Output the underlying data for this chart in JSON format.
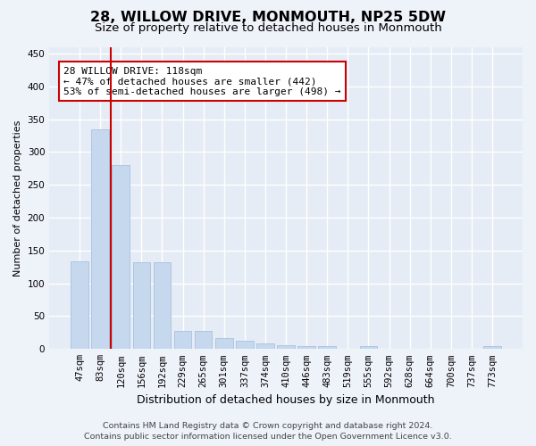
{
  "title1": "28, WILLOW DRIVE, MONMOUTH, NP25 5DW",
  "title2": "Size of property relative to detached houses in Monmouth",
  "xlabel": "Distribution of detached houses by size in Monmouth",
  "ylabel": "Number of detached properties",
  "categories": [
    "47sqm",
    "83sqm",
    "120sqm",
    "156sqm",
    "192sqm",
    "229sqm",
    "265sqm",
    "301sqm",
    "337sqm",
    "374sqm",
    "410sqm",
    "446sqm",
    "483sqm",
    "519sqm",
    "555sqm",
    "592sqm",
    "628sqm",
    "664sqm",
    "700sqm",
    "737sqm",
    "773sqm"
  ],
  "values": [
    134,
    335,
    280,
    132,
    132,
    27,
    27,
    17,
    13,
    8,
    6,
    5,
    4,
    0,
    4,
    0,
    0,
    0,
    0,
    0,
    4
  ],
  "bar_color": "#c5d8ee",
  "bar_edge_color": "#a8c0de",
  "vline_position": 1.5,
  "annotation_text": "28 WILLOW DRIVE: 118sqm\n← 47% of detached houses are smaller (442)\n53% of semi-detached houses are larger (498) →",
  "annotation_box_color": "#ffffff",
  "annotation_box_edge_color": "#cc0000",
  "vline_color": "#cc0000",
  "footer1": "Contains HM Land Registry data © Crown copyright and database right 2024.",
  "footer2": "Contains public sector information licensed under the Open Government Licence v3.0.",
  "ylim": [
    0,
    460
  ],
  "yticks": [
    0,
    50,
    100,
    150,
    200,
    250,
    300,
    350,
    400,
    450
  ],
  "bg_color": "#eef2f9",
  "plot_bg_color": "#e6ecf5",
  "grid_color": "#ffffff",
  "title1_fontsize": 11.5,
  "title2_fontsize": 9.5,
  "xlabel_fontsize": 9,
  "ylabel_fontsize": 8,
  "tick_fontsize": 7.5,
  "annotation_fontsize": 8,
  "footer_fontsize": 6.8
}
